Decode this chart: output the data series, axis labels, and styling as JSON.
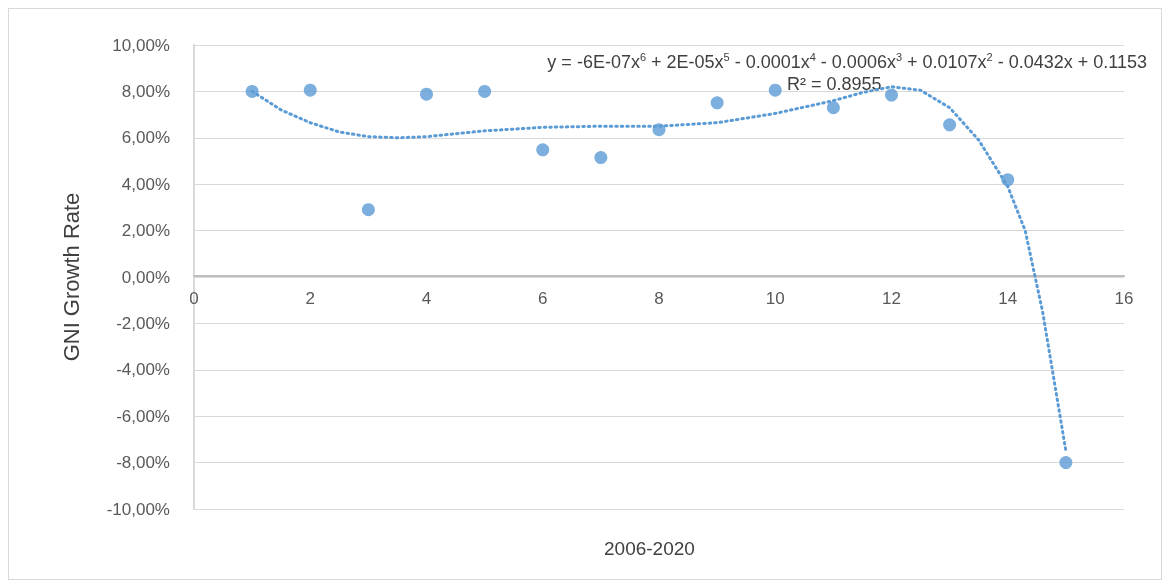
{
  "chart_data": {
    "type": "scatter",
    "xlabel": "2006-2020",
    "ylabel": "GNI Growth Rate",
    "annotations": [
      "y = -6E-07x$^{6}$ + 2E-05x$^{5}$ - 0.0001x$^{4}$ - 0.0006x$^{3}$ + 0.0107x$^{2}$ - 0.0432x + 0.1153",
      "R² = 0.8955"
    ],
    "x": [
      1,
      2,
      3,
      4,
      5,
      6,
      7,
      8,
      9,
      10,
      11,
      12,
      13,
      14,
      15
    ],
    "series": [
      {
        "color": "#5b9bd5",
        "marker": "circle",
        "values": [
          8.0,
          8.05,
          2.9,
          7.88,
          8.0,
          5.48,
          5.15,
          6.35,
          7.51,
          8.05,
          7.3,
          7.84,
          6.56,
          4.19,
          -8.0
        ]
      },
      {
        "type": "line",
        "color": "#5b9bd5",
        "marker": "none",
        "line_style": "dotted",
        "x": [
          1,
          1.5,
          2,
          2.5,
          3,
          3.5,
          4,
          5,
          6,
          7,
          8,
          9,
          10,
          11,
          11.5,
          12,
          12.5,
          13,
          13.5,
          14,
          14.3,
          14.6,
          15
        ],
        "values": [
          8.0,
          7.2,
          6.65,
          6.25,
          6.05,
          6.0,
          6.05,
          6.3,
          6.45,
          6.5,
          6.5,
          6.65,
          7.05,
          7.6,
          7.95,
          8.2,
          8.05,
          7.3,
          5.9,
          3.9,
          2.0,
          -1.5,
          -7.5
        ]
      }
    ],
    "xlim": [
      0,
      16
    ],
    "xticks": [
      0,
      2,
      4,
      6,
      8,
      10,
      12,
      14,
      16
    ],
    "ylim": [
      -10,
      10
    ],
    "yticks": [
      {
        "value": -10,
        "label": "-10,00%"
      },
      {
        "value": -8,
        "label": "-8,00%"
      },
      {
        "value": -6,
        "label": "-6,00%"
      },
      {
        "value": -4,
        "label": "-4,00%"
      },
      {
        "value": -2,
        "label": "-2,00%"
      },
      {
        "value": 0,
        "label": "0,00%"
      },
      {
        "value": 2,
        "label": "2,00%"
      },
      {
        "value": 4,
        "label": "4,00%"
      },
      {
        "value": 6,
        "label": "6,00%"
      },
      {
        "value": 8,
        "label": "8,00%"
      },
      {
        "value": 10,
        "label": "10,00%"
      }
    ],
    "grid": "y"
  }
}
